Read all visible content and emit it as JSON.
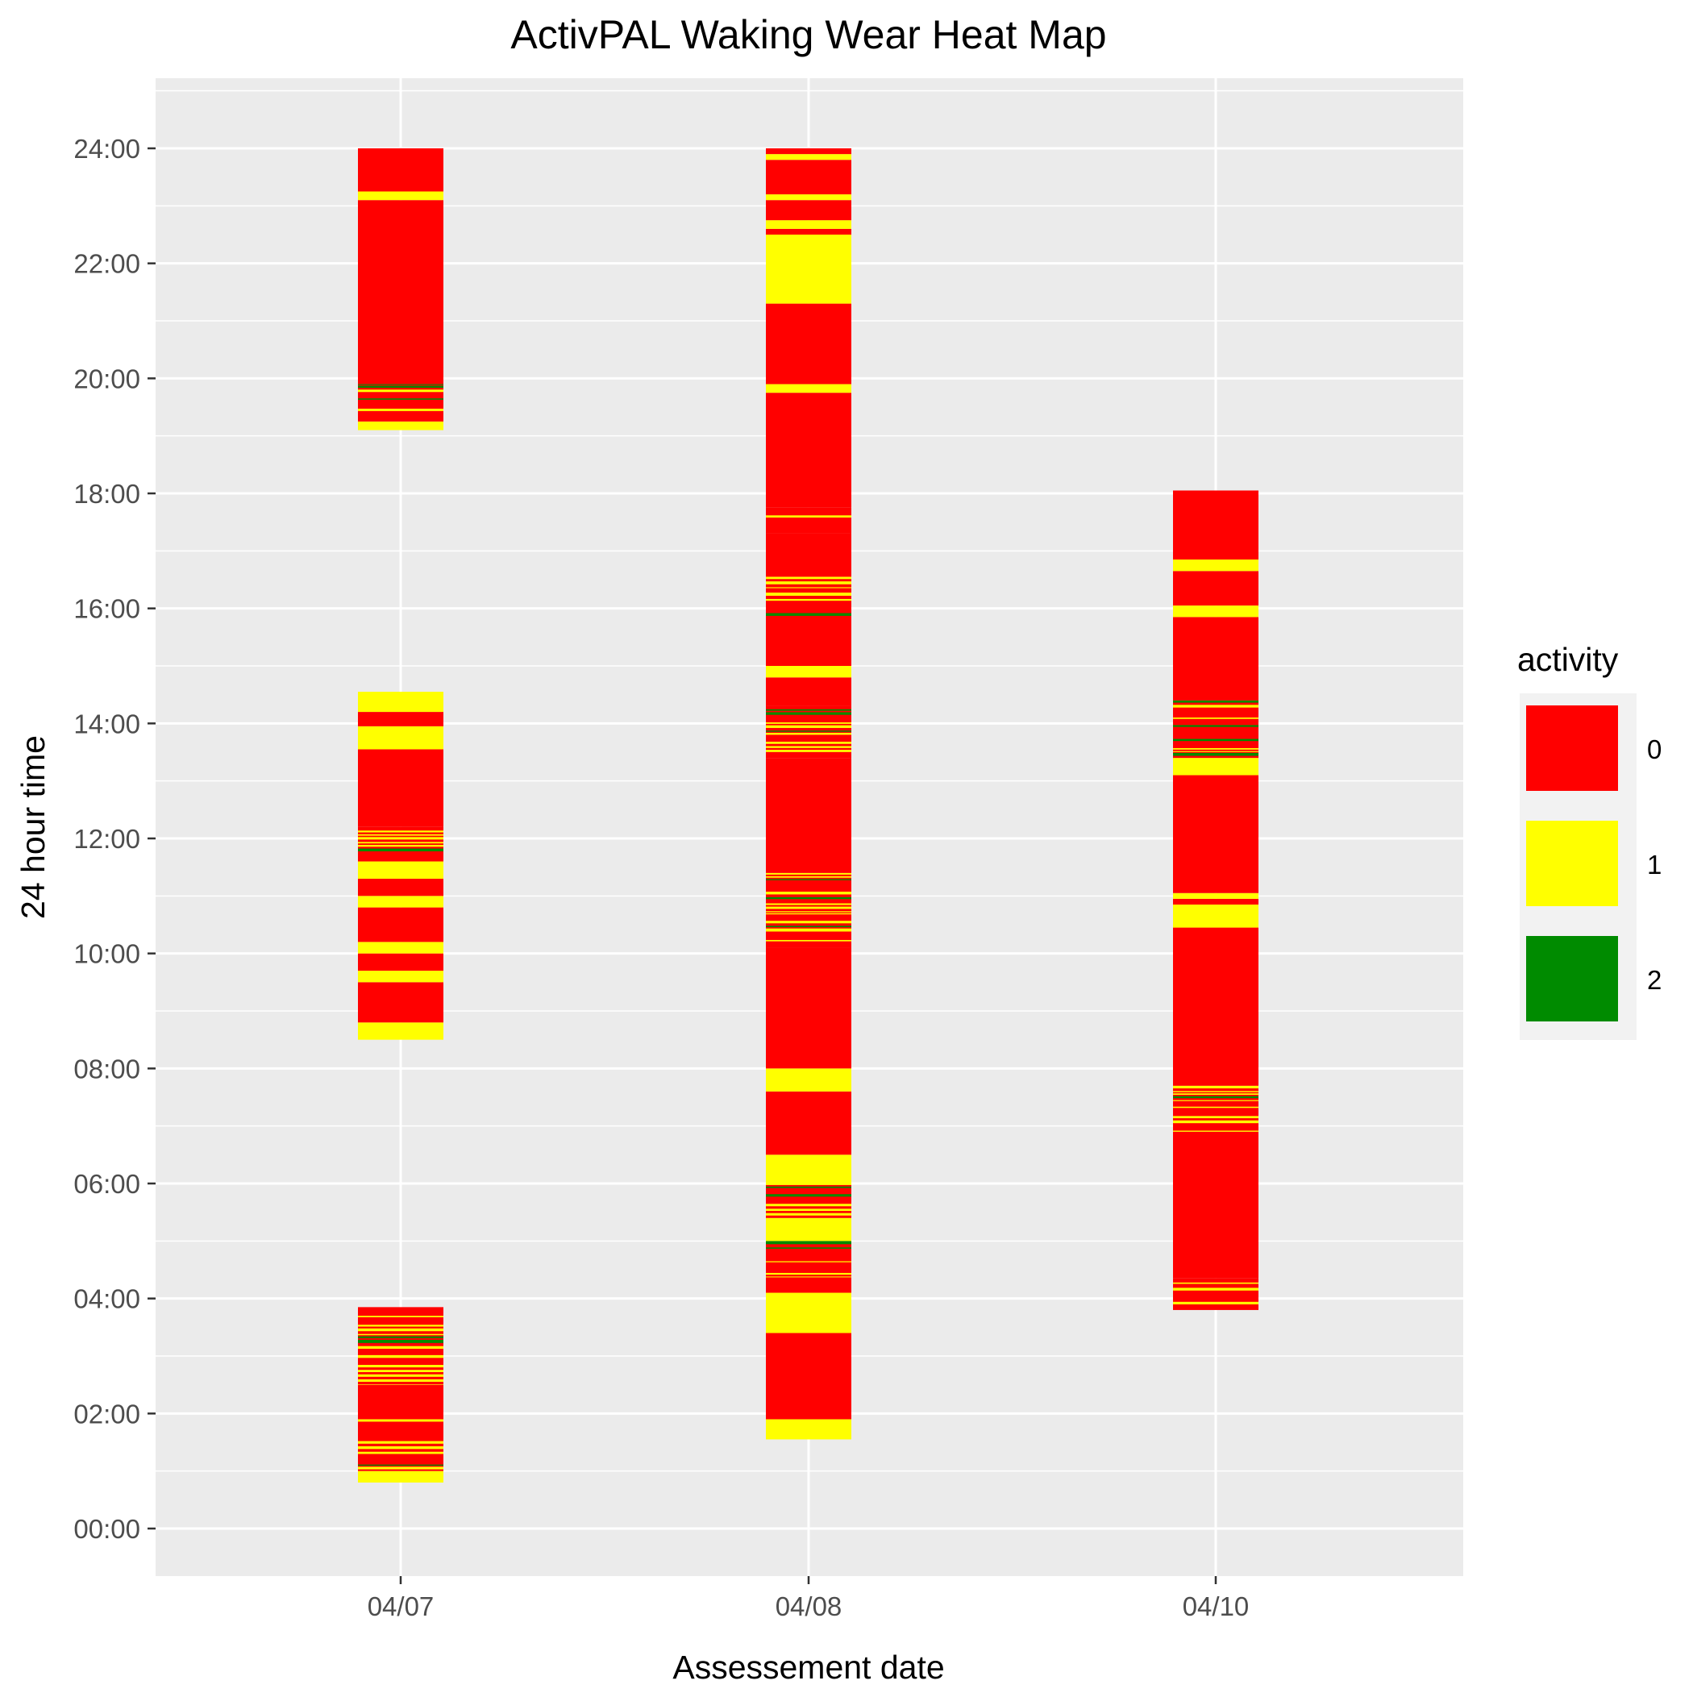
{
  "chart_data": {
    "type": "heatmap",
    "title": "ActivPAL Waking Wear Heat Map",
    "xlabel": "Assessement date",
    "ylabel": "24 hour time",
    "categories": [
      "04/07",
      "04/08",
      "04/10"
    ],
    "y_ticks": [
      "00:00",
      "02:00",
      "04:00",
      "06:00",
      "08:00",
      "10:00",
      "12:00",
      "14:00",
      "16:00",
      "18:00",
      "20:00",
      "22:00",
      "24:00"
    ],
    "ylim_hours": [
      -1,
      25
    ],
    "grid": true,
    "legend": {
      "title": "activity",
      "position": "right",
      "entries": [
        {
          "label": "0",
          "color": "#FF0000"
        },
        {
          "label": "1",
          "color": "#FFFF00"
        },
        {
          "label": "2",
          "color": "#008B00"
        }
      ]
    },
    "series": [
      {
        "date": "04/07",
        "segments": [
          {
            "start": 0.8,
            "end": 1.0,
            "activity": 1
          },
          {
            "start": 1.0,
            "end": 1.9,
            "activity": "mixed"
          },
          {
            "start": 1.9,
            "end": 2.5,
            "activity": 0
          },
          {
            "start": 2.5,
            "end": 3.7,
            "activity": "mixed"
          },
          {
            "start": 3.7,
            "end": 3.85,
            "activity": 0
          },
          {
            "start": 8.5,
            "end": 8.8,
            "activity": 1
          },
          {
            "start": 8.8,
            "end": 9.5,
            "activity": 0
          },
          {
            "start": 9.5,
            "end": 9.7,
            "activity": 1
          },
          {
            "start": 9.7,
            "end": 10.0,
            "activity": 0
          },
          {
            "start": 10.0,
            "end": 10.2,
            "activity": 1
          },
          {
            "start": 10.2,
            "end": 10.8,
            "activity": 0
          },
          {
            "start": 10.8,
            "end": 11.0,
            "activity": 1
          },
          {
            "start": 11.0,
            "end": 11.3,
            "activity": 0
          },
          {
            "start": 11.3,
            "end": 11.6,
            "activity": 1
          },
          {
            "start": 11.6,
            "end": 12.2,
            "activity": "mixed"
          },
          {
            "start": 12.2,
            "end": 13.55,
            "activity": 0
          },
          {
            "start": 13.55,
            "end": 13.95,
            "activity": 1
          },
          {
            "start": 13.95,
            "end": 14.2,
            "activity": 0
          },
          {
            "start": 14.2,
            "end": 14.55,
            "activity": 1
          },
          {
            "start": 19.1,
            "end": 19.25,
            "activity": 1
          },
          {
            "start": 19.25,
            "end": 19.9,
            "activity": "mixed"
          },
          {
            "start": 19.9,
            "end": 23.1,
            "activity": 0
          },
          {
            "start": 23.1,
            "end": 23.25,
            "activity": 1
          },
          {
            "start": 23.25,
            "end": 24.0,
            "activity": 0
          }
        ]
      },
      {
        "date": "04/08",
        "segments": [
          {
            "start": 1.55,
            "end": 1.9,
            "activity": 1
          },
          {
            "start": 1.9,
            "end": 3.4,
            "activity": 0
          },
          {
            "start": 3.4,
            "end": 4.1,
            "activity": 1
          },
          {
            "start": 4.1,
            "end": 5.0,
            "activity": "mixed"
          },
          {
            "start": 5.0,
            "end": 5.4,
            "activity": 1
          },
          {
            "start": 5.4,
            "end": 6.0,
            "activity": "mixed"
          },
          {
            "start": 6.0,
            "end": 6.5,
            "activity": 1
          },
          {
            "start": 6.5,
            "end": 7.6,
            "activity": 0
          },
          {
            "start": 7.6,
            "end": 8.0,
            "activity": 1
          },
          {
            "start": 8.0,
            "end": 10.1,
            "activity": 0
          },
          {
            "start": 10.1,
            "end": 11.4,
            "activity": "mixed"
          },
          {
            "start": 11.4,
            "end": 13.4,
            "activity": 0
          },
          {
            "start": 13.4,
            "end": 14.3,
            "activity": "mixed"
          },
          {
            "start": 14.3,
            "end": 14.8,
            "activity": 0
          },
          {
            "start": 14.8,
            "end": 15.0,
            "activity": 1
          },
          {
            "start": 15.0,
            "end": 15.75,
            "activity": 0
          },
          {
            "start": 15.75,
            "end": 16.55,
            "activity": "mixed"
          },
          {
            "start": 16.55,
            "end": 17.3,
            "activity": 0
          },
          {
            "start": 17.3,
            "end": 17.75,
            "activity": "mixed"
          },
          {
            "start": 17.75,
            "end": 19.75,
            "activity": 0
          },
          {
            "start": 19.75,
            "end": 19.9,
            "activity": 1
          },
          {
            "start": 19.9,
            "end": 21.3,
            "activity": 0
          },
          {
            "start": 21.3,
            "end": 22.5,
            "activity": 1
          },
          {
            "start": 22.5,
            "end": 22.6,
            "activity": 0
          },
          {
            "start": 22.6,
            "end": 22.75,
            "activity": 1
          },
          {
            "start": 22.75,
            "end": 23.1,
            "activity": 0
          },
          {
            "start": 23.1,
            "end": 23.2,
            "activity": 1
          },
          {
            "start": 23.2,
            "end": 23.8,
            "activity": 0
          },
          {
            "start": 23.8,
            "end": 23.9,
            "activity": 1
          },
          {
            "start": 23.9,
            "end": 24.0,
            "activity": 0
          }
        ]
      },
      {
        "date": "04/10",
        "segments": [
          {
            "start": 3.8,
            "end": 4.35,
            "activity": "mixed"
          },
          {
            "start": 4.35,
            "end": 6.9,
            "activity": 0
          },
          {
            "start": 6.9,
            "end": 7.7,
            "activity": "mixed"
          },
          {
            "start": 7.7,
            "end": 10.45,
            "activity": 0
          },
          {
            "start": 10.45,
            "end": 10.85,
            "activity": 1
          },
          {
            "start": 10.85,
            "end": 10.95,
            "activity": 0
          },
          {
            "start": 10.95,
            "end": 11.05,
            "activity": 1
          },
          {
            "start": 11.05,
            "end": 13.1,
            "activity": 0
          },
          {
            "start": 13.1,
            "end": 13.4,
            "activity": 1
          },
          {
            "start": 13.4,
            "end": 14.4,
            "activity": "mixed"
          },
          {
            "start": 14.4,
            "end": 15.85,
            "activity": 0
          },
          {
            "start": 15.85,
            "end": 16.05,
            "activity": 1
          },
          {
            "start": 16.05,
            "end": 16.65,
            "activity": 0
          },
          {
            "start": 16.65,
            "end": 16.85,
            "activity": 1
          },
          {
            "start": 16.85,
            "end": 18.05,
            "activity": 0
          }
        ]
      }
    ]
  }
}
